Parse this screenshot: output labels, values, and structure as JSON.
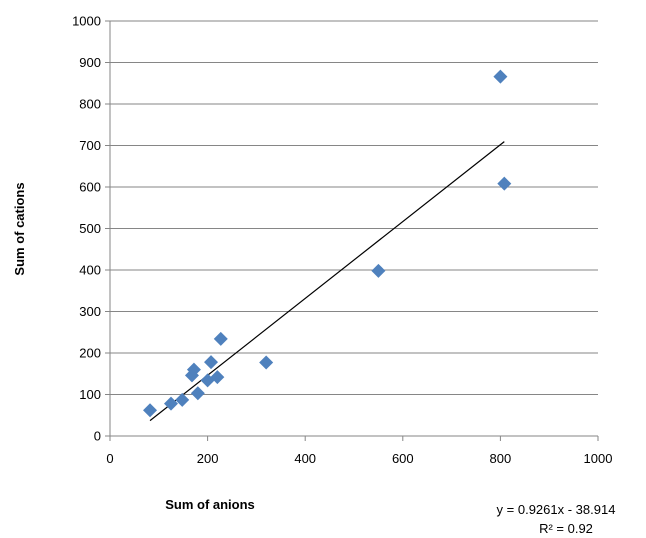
{
  "chart_data": {
    "type": "scatter",
    "title": "",
    "xlabel": "Sum of anions",
    "ylabel": "Sum of cations",
    "xlim": [
      0,
      1000
    ],
    "ylim": [
      0,
      1000
    ],
    "xticks": [
      0,
      200,
      400,
      600,
      800,
      1000
    ],
    "yticks": [
      0,
      100,
      200,
      300,
      400,
      500,
      600,
      700,
      800,
      900,
      1000
    ],
    "grid": "horizontal",
    "legend": "none",
    "marker": "diamond",
    "marker_color": "#4f81bd",
    "series": [
      {
        "x": [
          82,
          125,
          148,
          168,
          172,
          180,
          200,
          207,
          220,
          227,
          320,
          550,
          800,
          808
        ],
        "y": [
          62,
          78,
          87,
          146,
          160,
          103,
          134,
          178,
          142,
          234,
          177,
          398,
          866,
          608
        ]
      }
    ],
    "trendline": {
      "type": "linear",
      "slope": 0.9261,
      "intercept": -38.914,
      "x_range": [
        82,
        808
      ],
      "equation": "y = 0.9261x - 38.914",
      "r_squared": "R² = 0.92"
    }
  }
}
